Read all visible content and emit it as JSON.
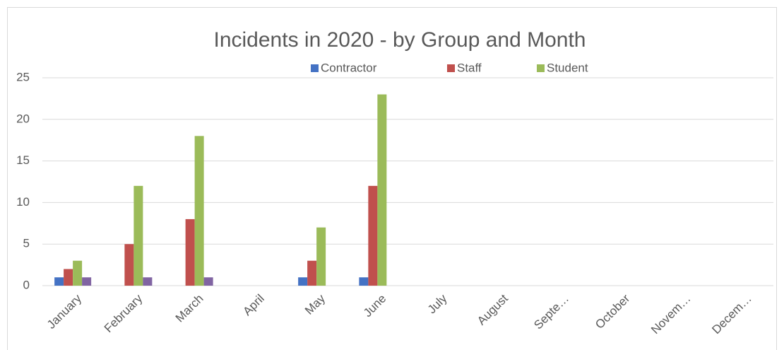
{
  "chart_data": {
    "type": "bar",
    "title": "Incidents in 2020 - by Group and Month",
    "categories": [
      "January",
      "February",
      "March",
      "April",
      "May",
      "June",
      "July",
      "August",
      "Septe…",
      "October",
      "Novem…",
      "Decem…"
    ],
    "series": [
      {
        "name": "Contractor",
        "color": "#4472c4",
        "values": [
          1,
          0,
          0,
          0,
          1,
          1,
          null,
          null,
          null,
          null,
          null,
          null
        ]
      },
      {
        "name": "Staff",
        "color": "#c0504d",
        "values": [
          2,
          5,
          8,
          0,
          3,
          12,
          null,
          null,
          null,
          null,
          null,
          null
        ]
      },
      {
        "name": "Student",
        "color": "#9bbb59",
        "values": [
          3,
          12,
          18,
          0,
          7,
          23,
          null,
          null,
          null,
          null,
          null,
          null
        ]
      },
      {
        "color": "#8064a2",
        "values": [
          1,
          1,
          1,
          0,
          0,
          0,
          null,
          null,
          null,
          null,
          null,
          null
        ]
      }
    ],
    "ylim": [
      0,
      25
    ],
    "yticks": [
      0,
      5,
      10,
      15,
      20,
      25
    ],
    "grid": true,
    "legend": "top"
  }
}
